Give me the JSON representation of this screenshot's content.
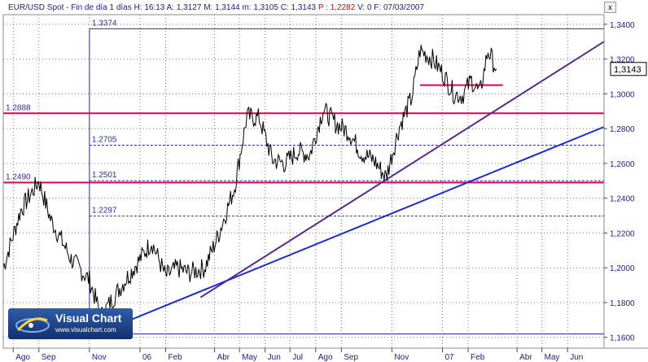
{
  "header": {
    "symbol": "EUR/USD Spot",
    "period_label": "Fin de día 1 días",
    "h_label": "H:",
    "h_value": "16:13",
    "a_label": "A:",
    "a_value": "1,3127",
    "m_label": "M:",
    "m_value": "1,3144",
    "n_label": "m:",
    "n_value": "1,3105",
    "c_label": "C:",
    "c_value": "1,3143",
    "p_label": "P :",
    "p_value": "1,2282",
    "v_label": "V:",
    "v_value": "0",
    "f_label": "F:",
    "f_value": "07/03/2007",
    "accent_color": "#d40000",
    "text_color": "#1a1a8a"
  },
  "close_button": "x",
  "logo": {
    "title": "Visual Chart",
    "url": "www.visualchart.com"
  },
  "chart_data": {
    "type": "line",
    "instrument": "EUR/USD Spot",
    "ylim": [
      1.158,
      1.346
    ],
    "y_ticks": [
      "1,3400",
      "1,3200",
      "1,3000",
      "1,2800",
      "1,2600",
      "1,2400",
      "1,2200",
      "1,2000",
      "1,1800",
      "1,1600"
    ],
    "y_tick_values": [
      1.34,
      1.32,
      1.3,
      1.28,
      1.26,
      1.24,
      1.22,
      1.2,
      1.18,
      1.16
    ],
    "last_price_label": "1,3143",
    "last_price": 1.3143,
    "x_ticks": [
      "Ago",
      "Sep",
      "Nov",
      "06",
      "Feb",
      "Abr",
      "May",
      "Jun",
      "Jul",
      "Ago",
      "Sep",
      "Nov",
      "07",
      "Feb",
      "Abr",
      "May",
      "Jun"
    ],
    "x_tick_dates": [
      "2005-08-01",
      "2005-09-01",
      "2005-11-01",
      "2006-01-01",
      "2006-02-01",
      "2006-04-01",
      "2006-05-01",
      "2006-06-01",
      "2006-07-01",
      "2006-08-01",
      "2006-09-01",
      "2006-11-01",
      "2007-01-01",
      "2007-02-01",
      "2007-04-01",
      "2007-05-01",
      "2007-06-01"
    ],
    "xlim": [
      "2005-07-20",
      "2007-07-15"
    ],
    "series": [
      {
        "x": [
          "2005-07-20",
          "2005-08-10",
          "2005-09-01",
          "2005-09-15",
          "2005-10-10",
          "2005-11-01",
          "2005-11-15",
          "2005-12-10",
          "2006-01-01",
          "2006-01-15",
          "2006-02-01",
          "2006-02-15",
          "2006-03-01",
          "2006-03-20",
          "2006-04-05",
          "2006-04-25",
          "2006-05-10",
          "2006-05-25",
          "2006-06-10",
          "2006-06-25",
          "2006-07-10",
          "2006-07-25",
          "2006-08-10",
          "2006-08-25",
          "2006-09-10",
          "2006-09-25",
          "2006-10-10",
          "2006-10-25",
          "2006-11-10",
          "2006-11-25",
          "2006-12-05",
          "2006-12-20",
          "2007-01-01",
          "2007-01-15",
          "2007-01-25",
          "2007-02-05",
          "2007-02-15",
          "2007-02-25",
          "2007-03-07"
        ],
        "values": [
          1.2,
          1.233,
          1.25,
          1.228,
          1.205,
          1.193,
          1.172,
          1.19,
          1.205,
          1.215,
          1.195,
          1.2,
          1.197,
          1.2,
          1.218,
          1.246,
          1.287,
          1.286,
          1.262,
          1.26,
          1.267,
          1.265,
          1.291,
          1.283,
          1.278,
          1.266,
          1.262,
          1.252,
          1.281,
          1.298,
          1.325,
          1.32,
          1.312,
          1.3,
          1.299,
          1.308,
          1.3,
          1.325,
          1.3143
        ]
      }
    ],
    "annotations": [
      {
        "label": "1.3374",
        "value": 1.3374,
        "style": "solid-blue"
      },
      {
        "label": "1.2888",
        "value": 1.2888,
        "style": "magenta"
      },
      {
        "label": "1.2705",
        "value": 1.2705,
        "style": "dashed-blue"
      },
      {
        "label": "1.2490",
        "value": 1.249,
        "style": "magenta"
      },
      {
        "label": "1.2501",
        "value": 1.2501,
        "style": "dashed-blue"
      },
      {
        "label": "1.2297",
        "value": 1.2297,
        "style": "dashed-blue"
      }
    ],
    "trendlines": [
      {
        "color": "#5a2a8a",
        "points": [
          [
            "2006-03-15",
            1.183
          ],
          [
            "2007-07-15",
            1.33
          ]
        ]
      },
      {
        "color": "#1a2cd0",
        "points": [
          [
            "2005-12-10",
            1.168
          ],
          [
            "2007-07-15",
            1.281
          ]
        ]
      }
    ],
    "segments": [
      {
        "color": "#e0005a",
        "value": 1.305,
        "from": "2006-12-05",
        "to": "2007-03-15"
      }
    ],
    "vertical_markers": [
      "2005-11-01"
    ],
    "bottom_line": 1.162
  }
}
